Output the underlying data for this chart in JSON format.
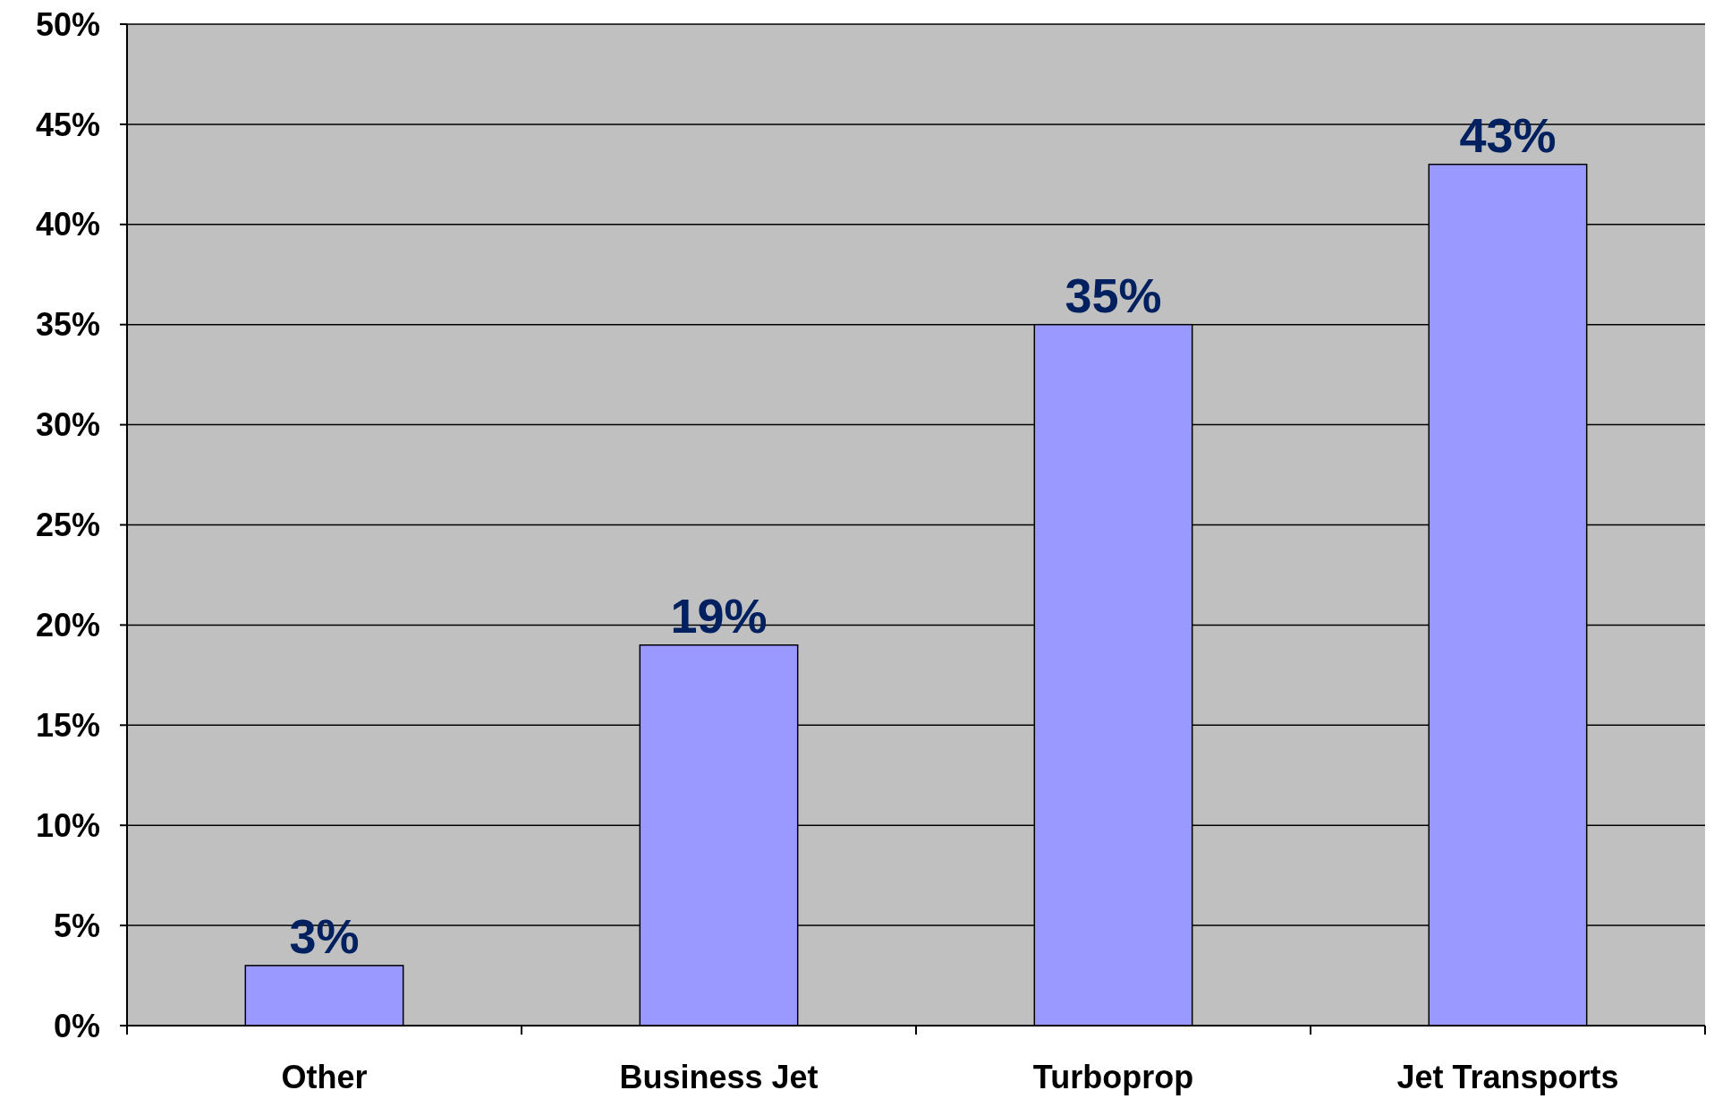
{
  "chart_data": {
    "type": "bar",
    "categories": [
      "Other",
      "Business Jet",
      "Turboprop",
      "Jet Transports"
    ],
    "values": [
      3,
      19,
      35,
      43
    ],
    "value_labels": [
      "3%",
      "19%",
      "35%",
      "43%"
    ],
    "color": "#9999ff",
    "ylim": [
      0,
      50
    ],
    "yticks": [
      {
        "value": 0,
        "label": "0%"
      },
      {
        "value": 5,
        "label": "5%"
      },
      {
        "value": 10,
        "label": "10%"
      },
      {
        "value": 15,
        "label": "15%"
      },
      {
        "value": 20,
        "label": "20%"
      },
      {
        "value": 25,
        "label": "25%"
      },
      {
        "value": 30,
        "label": "30%"
      },
      {
        "value": 35,
        "label": "35%"
      },
      {
        "value": 40,
        "label": "40%"
      },
      {
        "value": 45,
        "label": "45%"
      },
      {
        "value": 50,
        "label": "50%"
      }
    ],
    "grid": "y"
  }
}
